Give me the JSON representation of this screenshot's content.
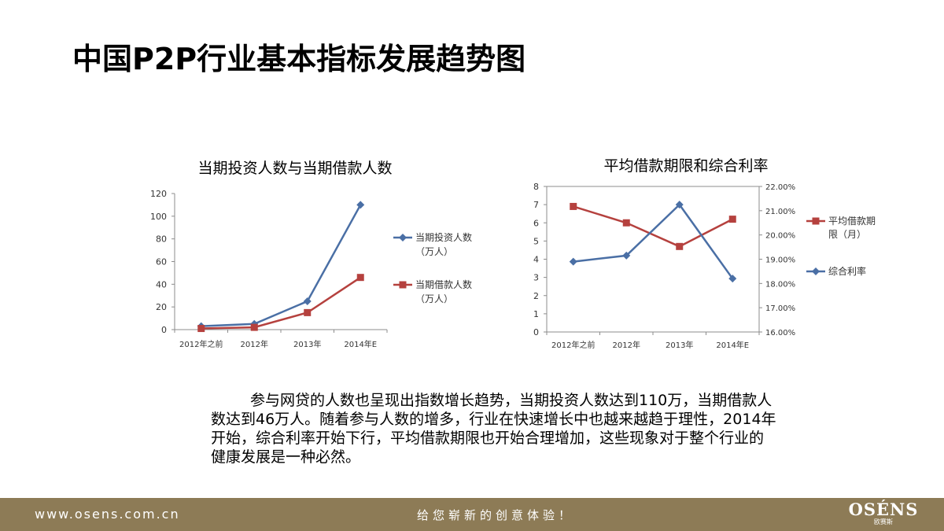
{
  "page": {
    "title": "中国P2P行业基本指标发展趋势图"
  },
  "paragraph": "参与网贷的人数也呈现出指数增长趋势，当期投资人数达到110万，当期借款人数达到46万人。随着参与人数的增多，行业在快速增长中也越来越趋于理性，2014年开始，综合利率开始下行，平均借款期限也开始合理增加，这些现象对于整个行业的健康发展是一种必然。",
  "footer": {
    "url": "www.osens.com.cn",
    "slogan": "给您崭新的创意体验！",
    "logo_main": "OSÉNS",
    "logo_sub": "欧赛斯"
  },
  "chart_data": [
    {
      "type": "line",
      "title": "当期投资人数与当期借款人数",
      "categories": [
        "2012年之前",
        "2012年",
        "2013年",
        "2014年E"
      ],
      "ylim": [
        0,
        120
      ],
      "yticks": [
        "0",
        "20",
        "40",
        "60",
        "80",
        "100",
        "120"
      ],
      "grid": false,
      "legend_position": "right",
      "series": [
        {
          "name": "当期投资人数（万人）",
          "legend_lines": [
            "当期投资人数",
            "（万人）"
          ],
          "values": [
            3,
            5,
            25,
            110
          ],
          "color": "#4a6fa5",
          "marker": "diamond"
        },
        {
          "name": "当期借款人数（万人）",
          "legend_lines": [
            "当期借款人数",
            "（万人）"
          ],
          "values": [
            1,
            2,
            15,
            46
          ],
          "color": "#b5413e",
          "marker": "square"
        }
      ]
    },
    {
      "type": "line",
      "title": "平均借款期限和综合利率",
      "categories": [
        "2012年之前",
        "2012年",
        "2013年",
        "2014年E"
      ],
      "ylim": [
        0,
        8
      ],
      "yticks": [
        "0",
        "1",
        "2",
        "3",
        "4",
        "5",
        "6",
        "7",
        "8"
      ],
      "y2lim": [
        16,
        22
      ],
      "y2ticks": [
        "16.00%",
        "17.00%",
        "18.00%",
        "19.00%",
        "20.00%",
        "21.00%",
        "22.00%"
      ],
      "grid": false,
      "legend_position": "right",
      "series": [
        {
          "name": "平均借款期限（月）",
          "legend_lines": [
            "平均借款期",
            "限（月）"
          ],
          "axis": "left",
          "values": [
            6.9,
            6.0,
            4.7,
            6.2
          ],
          "color": "#b5413e",
          "marker": "square"
        },
        {
          "name": "综合利率",
          "legend_lines": [
            "综合利率"
          ],
          "axis": "right",
          "values": [
            18.9,
            19.15,
            21.25,
            18.2
          ],
          "color": "#4a6fa5",
          "marker": "diamond"
        }
      ]
    }
  ]
}
